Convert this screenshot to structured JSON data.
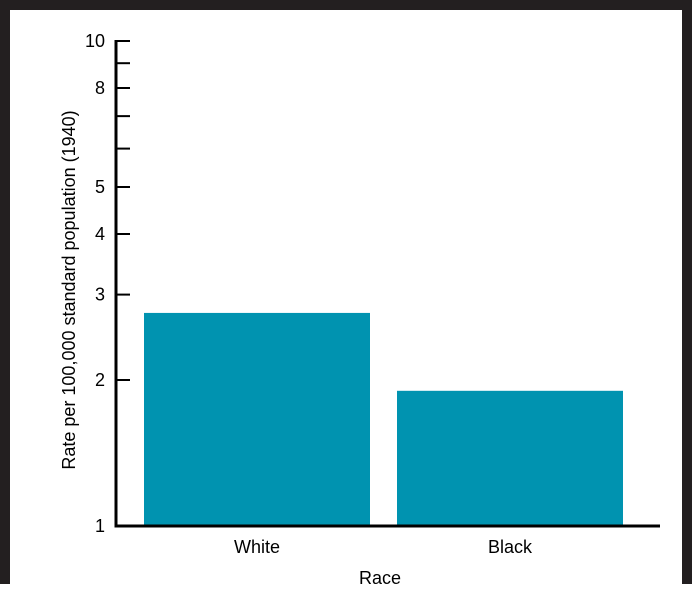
{
  "chart_data": {
    "type": "bar",
    "categories": [
      "White",
      "Black"
    ],
    "values": [
      2.75,
      1.9
    ],
    "xlabel": "Race",
    "ylabel": "Rate per 100,000 standard population (1940)",
    "ylim": [
      1,
      10
    ],
    "yscale": "log",
    "yticks": [
      1,
      2,
      3,
      4,
      5,
      6,
      7,
      8,
      9,
      10
    ],
    "ytick_labels": {
      "1": "1",
      "2": "2",
      "3": "3",
      "4": "4",
      "5": "5",
      "8": "8",
      "10": "10"
    },
    "grid": false,
    "legend": "none",
    "colors": {
      "bar": "#0093b0",
      "frame": "#231f20",
      "axis": "#000000"
    }
  }
}
